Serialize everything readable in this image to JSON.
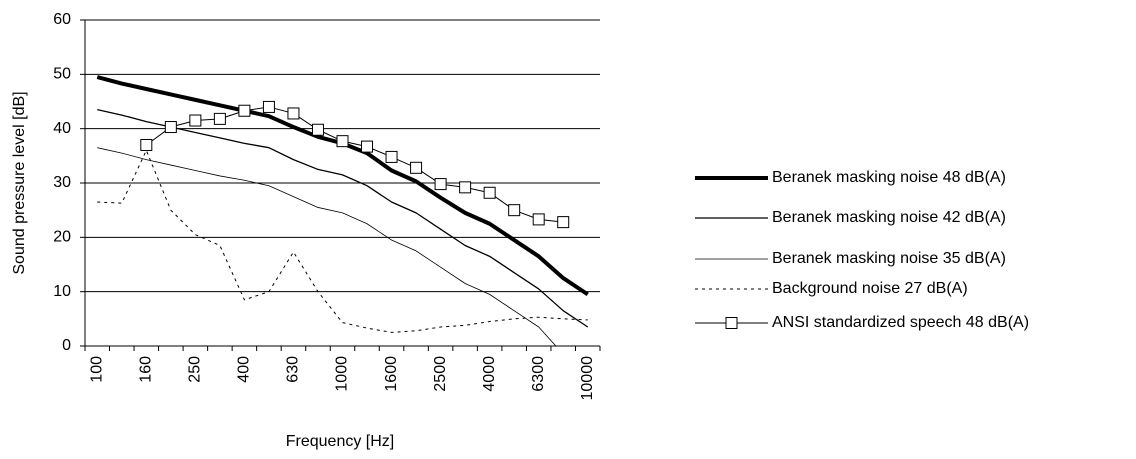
{
  "chart_data": {
    "type": "line",
    "x_label": "Frequency [Hz]",
    "y_label": "Sound pressure level [dB]",
    "categories": [
      "100",
      null,
      "160",
      null,
      "250",
      null,
      "400",
      null,
      "630",
      null,
      "1000",
      null,
      "1600",
      null,
      "2500",
      null,
      "4000",
      null,
      "6300",
      null,
      "10000"
    ],
    "ylim": [
      0,
      60
    ],
    "yticks": [
      0,
      10,
      20,
      30,
      40,
      50,
      60
    ],
    "grid": true,
    "legend": "right",
    "series": [
      {
        "name": "Beranek masking noise 48 dB(A)",
        "color": "#000000",
        "line_width": 4,
        "line_style": "solid",
        "values": [
          49.5,
          48.3,
          47.3,
          46.3,
          45.3,
          44.3,
          43.3,
          42.3,
          40.3,
          38.5,
          37.3,
          35.5,
          32.3,
          30.3,
          27.3,
          24.5,
          22.5,
          19.5,
          16.5,
          12.5,
          9.5
        ]
      },
      {
        "name": "Beranek masking noise 42 dB(A)",
        "color": "#000000",
        "line_width": 1.3,
        "line_style": "solid",
        "values": [
          43.5,
          42.5,
          41.3,
          40.3,
          39.3,
          38.3,
          37.3,
          36.5,
          34.3,
          32.5,
          31.5,
          29.5,
          26.5,
          24.5,
          21.5,
          18.5,
          16.5,
          13.5,
          10.5,
          6.5,
          3.5
        ]
      },
      {
        "name": "Beranek masking noise 35 dB(A)",
        "color": "#000000",
        "line_width": 0.8,
        "line_style": "solid",
        "values": [
          36.5,
          35.5,
          34.3,
          33.3,
          32.3,
          31.3,
          30.5,
          29.5,
          27.5,
          25.5,
          24.5,
          22.5,
          19.5,
          17.5,
          14.5,
          11.5,
          9.5,
          6.5,
          3.5,
          -1.5,
          -4.5
        ]
      },
      {
        "name": "Background noise 27 dB(A)",
        "color": "#000000",
        "line_width": 1,
        "line_style": "dotted",
        "values": [
          26.5,
          26.3,
          36,
          25,
          20.5,
          18.5,
          8.5,
          10,
          17.3,
          10,
          4.3,
          3.3,
          2.5,
          2.8,
          3.5,
          3.8,
          4.5,
          5.0,
          5.3,
          5.0,
          4.8
        ]
      },
      {
        "name": "ANSI standardized speech 48 dB(A)",
        "color": "#000000",
        "line_width": 1,
        "line_style": "solid",
        "marker": "square",
        "values": [
          null,
          null,
          37,
          40.3,
          41.5,
          41.8,
          43.3,
          44,
          42.8,
          39.8,
          37.7,
          36.7,
          34.8,
          32.8,
          29.8,
          29.2,
          28.2,
          25,
          23.3,
          22.8,
          null
        ]
      }
    ]
  }
}
